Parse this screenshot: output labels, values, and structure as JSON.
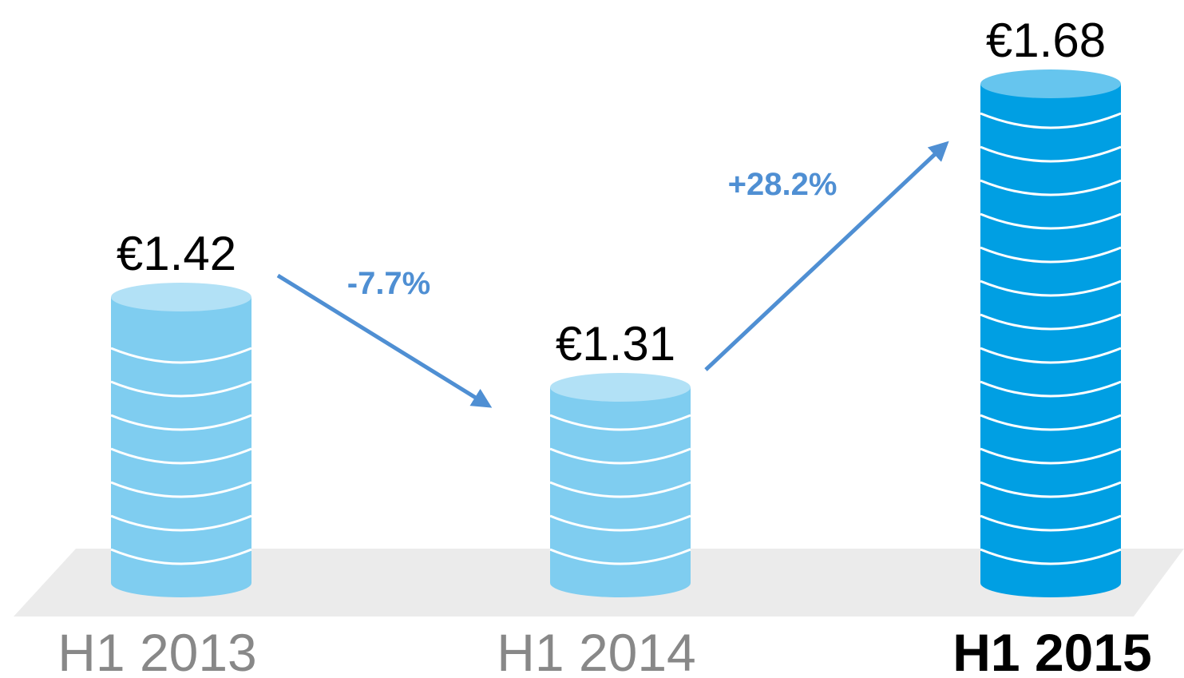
{
  "chart_data": {
    "type": "coin-stack",
    "categories": [
      "H1 2013",
      "H1 2014",
      "H1 2015"
    ],
    "values": [
      1.42,
      1.31,
      1.68
    ],
    "value_labels": [
      "€1.42",
      "€1.31",
      "€1.68"
    ],
    "colors": [
      "#7fcdf0",
      "#7fcdf0",
      "#009fe3"
    ],
    "annotations": [
      "-7.7%",
      "+28.2%"
    ]
  }
}
